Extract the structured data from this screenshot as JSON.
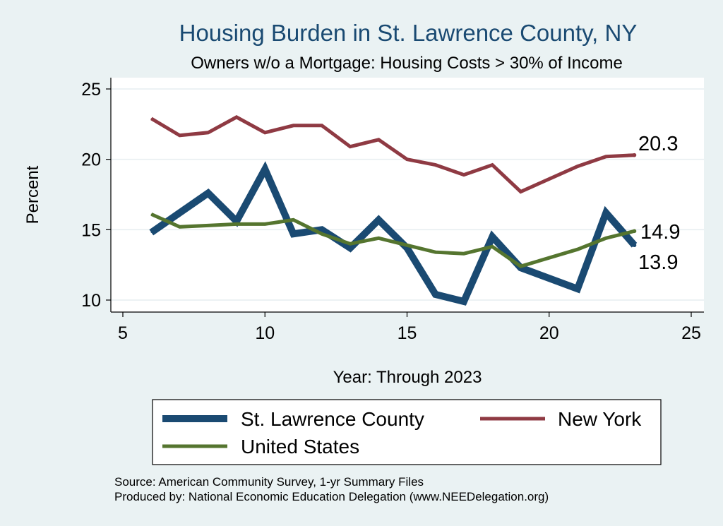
{
  "chart_data": {
    "type": "line",
    "title": "Housing Burden in St. Lawrence County, NY",
    "subtitle": "Owners w/o a Mortgage: Housing Costs > 30% of Income",
    "xlabel": "Year: Through 2023",
    "ylabel": "Percent",
    "xlim": [
      5,
      25
    ],
    "ylim": [
      10,
      25
    ],
    "xticks": [
      5,
      10,
      15,
      20,
      25
    ],
    "yticks": [
      10,
      15,
      20,
      25
    ],
    "grid": true,
    "legend_position": "bottom",
    "series": [
      {
        "name": "St. Lawrence County",
        "color": "#1a4a72",
        "x": [
          6,
          7,
          8,
          9,
          10,
          11,
          12,
          13,
          14,
          15,
          16,
          17,
          18,
          19,
          21,
          22,
          23
        ],
        "values": [
          14.8,
          16.2,
          17.6,
          15.6,
          19.3,
          14.7,
          15.0,
          13.7,
          15.7,
          13.7,
          10.4,
          9.9,
          14.5,
          12.3,
          10.8,
          16.2,
          13.9
        ],
        "end_label": "13.9"
      },
      {
        "name": "New York",
        "color": "#8f3a43",
        "x": [
          6,
          7,
          8,
          9,
          10,
          11,
          12,
          13,
          14,
          15,
          16,
          17,
          18,
          19,
          21,
          22,
          23
        ],
        "values": [
          22.9,
          21.7,
          21.9,
          23.0,
          21.9,
          22.4,
          22.4,
          20.9,
          21.4,
          20.0,
          19.6,
          18.9,
          19.6,
          17.7,
          19.5,
          20.2,
          20.3
        ],
        "end_label": "20.3"
      },
      {
        "name": "United States",
        "color": "#55752f",
        "x": [
          6,
          7,
          8,
          9,
          10,
          11,
          12,
          13,
          14,
          15,
          16,
          17,
          18,
          19,
          21,
          22,
          23
        ],
        "values": [
          16.1,
          15.2,
          15.3,
          15.4,
          15.4,
          15.7,
          14.7,
          14.0,
          14.4,
          13.9,
          13.4,
          13.3,
          13.8,
          12.4,
          13.6,
          14.4,
          14.9
        ],
        "end_label": "14.9"
      }
    ]
  },
  "notes": {
    "source": "Source: American Community Survey, 1-yr Summary Files",
    "producer": "Produced by: National Economic Education Delegation (www.NEEDelegation.org)"
  }
}
